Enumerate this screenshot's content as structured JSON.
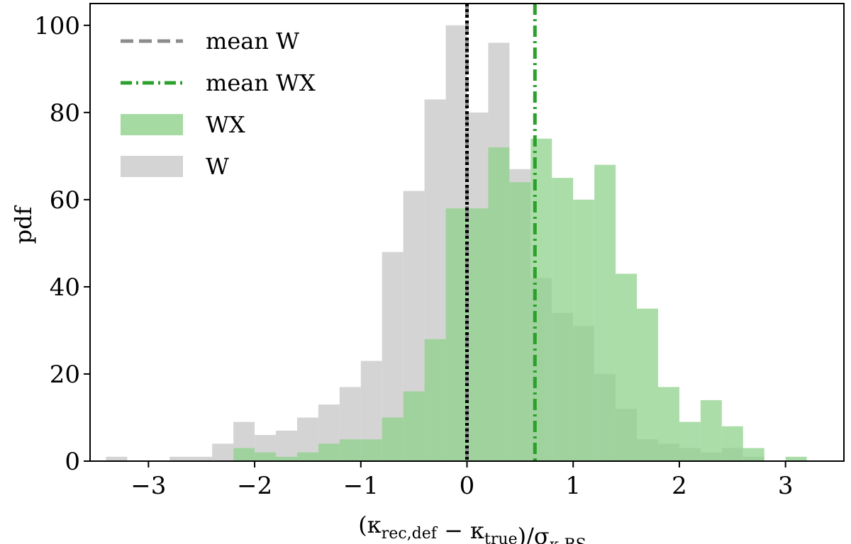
{
  "chart_data": {
    "type": "histogram",
    "title": "",
    "xlabel": "(κ_rec,def − κ_true)/σ_κ,BS",
    "ylabel": "pdf",
    "xlim": [
      -3.55,
      3.55
    ],
    "ylim": [
      0,
      105
    ],
    "bin_width": 0.2,
    "xticks": [
      {
        "value": -3,
        "label": "−3"
      },
      {
        "value": -2,
        "label": "−2"
      },
      {
        "value": -1,
        "label": "−1"
      },
      {
        "value": 0,
        "label": "0"
      },
      {
        "value": 1,
        "label": "1"
      },
      {
        "value": 2,
        "label": "2"
      },
      {
        "value": 3,
        "label": "3"
      }
    ],
    "yticks": [
      {
        "value": 0,
        "label": "0"
      },
      {
        "value": 20,
        "label": "20"
      },
      {
        "value": 40,
        "label": "40"
      },
      {
        "value": 60,
        "label": "60"
      },
      {
        "value": 80,
        "label": "80"
      },
      {
        "value": 100,
        "label": "100"
      }
    ],
    "series": [
      {
        "name": "W",
        "color": "#c9c9c9",
        "opacity": 0.8,
        "bins": [
          [
            -3.3,
            1
          ],
          [
            -3.1,
            0
          ],
          [
            -2.9,
            0
          ],
          [
            -2.7,
            1
          ],
          [
            -2.5,
            1
          ],
          [
            -2.3,
            4
          ],
          [
            -2.1,
            9
          ],
          [
            -1.9,
            6
          ],
          [
            -1.7,
            7
          ],
          [
            -1.5,
            10
          ],
          [
            -1.3,
            13
          ],
          [
            -1.1,
            17
          ],
          [
            -0.9,
            23
          ],
          [
            -0.7,
            48
          ],
          [
            -0.5,
            62
          ],
          [
            -0.3,
            83
          ],
          [
            -0.1,
            100
          ],
          [
            0.1,
            80
          ],
          [
            0.3,
            96
          ],
          [
            0.5,
            67
          ],
          [
            0.7,
            42
          ],
          [
            0.9,
            34
          ],
          [
            1.1,
            31
          ],
          [
            1.3,
            20
          ],
          [
            1.5,
            12
          ],
          [
            1.7,
            5
          ],
          [
            1.9,
            4
          ],
          [
            2.1,
            3
          ],
          [
            2.3,
            2
          ],
          [
            2.5,
            3
          ],
          [
            2.7,
            1
          ]
        ]
      },
      {
        "name": "WX",
        "color": "#8fd18b",
        "opacity": 0.75,
        "bins": [
          [
            -2.1,
            3
          ],
          [
            -1.9,
            2
          ],
          [
            -1.7,
            1
          ],
          [
            -1.5,
            2
          ],
          [
            -1.3,
            4
          ],
          [
            -1.1,
            5
          ],
          [
            -0.9,
            5
          ],
          [
            -0.7,
            10
          ],
          [
            -0.5,
            16
          ],
          [
            -0.3,
            28
          ],
          [
            -0.1,
            58
          ],
          [
            0.1,
            58
          ],
          [
            0.3,
            72
          ],
          [
            0.5,
            64
          ],
          [
            0.7,
            74
          ],
          [
            0.9,
            65
          ],
          [
            1.1,
            60
          ],
          [
            1.3,
            68
          ],
          [
            1.5,
            43
          ],
          [
            1.7,
            35
          ],
          [
            1.9,
            17
          ],
          [
            2.1,
            9
          ],
          [
            2.3,
            14
          ],
          [
            2.5,
            8
          ],
          [
            2.7,
            3
          ],
          [
            2.9,
            0
          ],
          [
            3.1,
            1
          ]
        ]
      }
    ],
    "reference_lines": [
      {
        "name": "mean W",
        "x": 0.0,
        "color": "#8c8c8c",
        "style": "dashed"
      },
      {
        "name": "mean WX",
        "x": 0.64,
        "color": "#2ca02c",
        "style": "dashdot"
      },
      {
        "name": "zero",
        "x": 0.0,
        "color": "#000000",
        "style": "dotted"
      }
    ],
    "legend": {
      "position": "top-left",
      "entries": [
        {
          "label": "mean W",
          "kind": "line",
          "color": "#8c8c8c",
          "style": "dashed"
        },
        {
          "label": "mean WX",
          "kind": "line",
          "color": "#2ca02c",
          "style": "dashdot"
        },
        {
          "label": "WX",
          "kind": "patch",
          "color": "#8fd18b"
        },
        {
          "label": "W",
          "kind": "patch",
          "color": "#c9c9c9"
        }
      ]
    }
  }
}
